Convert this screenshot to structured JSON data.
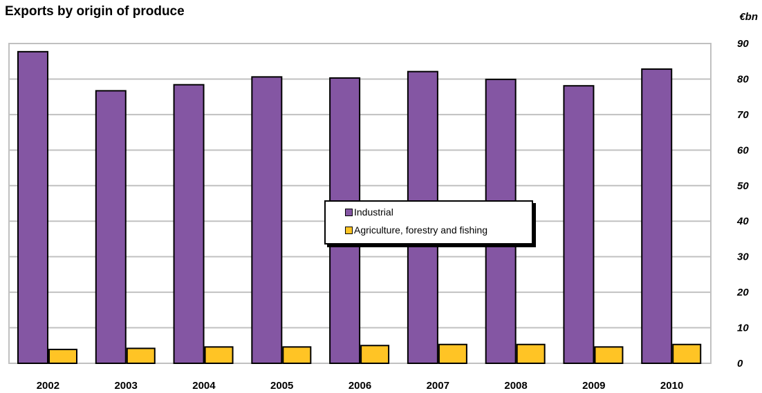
{
  "title": "Exports by origin of produce",
  "unit_label": "€bn",
  "chart_data": {
    "type": "bar",
    "title": "Exports by origin of produce",
    "xlabel": "",
    "ylabel": "€bn",
    "ylim": [
      0,
      90
    ],
    "yticks": [
      0,
      10,
      20,
      30,
      40,
      50,
      60,
      70,
      80,
      90
    ],
    "grid": true,
    "y_axis_position": "right",
    "legend_placement": "center",
    "categories": [
      "2002",
      "2003",
      "2004",
      "2005",
      "2006",
      "2007",
      "2008",
      "2009",
      "2010"
    ],
    "series": [
      {
        "name": "Industrial",
        "color": "#8456A3",
        "values": [
          87.7,
          76.7,
          78.4,
          80.6,
          80.3,
          82.1,
          79.9,
          78.1,
          82.8
        ]
      },
      {
        "name": "Agriculture, forestry and fishing",
        "color": "#FFC425",
        "values": [
          3.9,
          4.2,
          4.6,
          4.6,
          5.0,
          5.3,
          5.3,
          4.6,
          5.3
        ]
      }
    ]
  }
}
